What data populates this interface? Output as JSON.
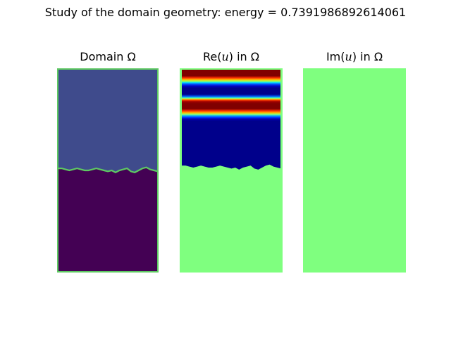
{
  "figure": {
    "suptitle": "Study of the domain geometry: energy = 0.7391986892614061"
  },
  "panels": [
    {
      "title_pre": "Domain Ω",
      "title_var": "",
      "title_post": ""
    },
    {
      "title_pre": "Re(",
      "title_var": "u",
      "title_post": ") in Ω"
    },
    {
      "title_pre": "Im(",
      "title_var": "u",
      "title_post": ") in Ω"
    }
  ],
  "colors": {
    "domain_upper": "#3f4b8c",
    "domain_lower": "#440154",
    "domain_border": "#5ec962",
    "jet_neutral": "#7fff7f",
    "jet_high": "#800000",
    "jet_low": "#00008b"
  },
  "chart_data": [
    {
      "type": "heatmap",
      "colormap": "viridis",
      "title": "Domain Ω",
      "interface_fraction_from_top": [
        0.49,
        0.49,
        0.495,
        0.5,
        0.495,
        0.49,
        0.495,
        0.5,
        0.5,
        0.495,
        0.49,
        0.495,
        0.5,
        0.505,
        0.5,
        0.51,
        0.5,
        0.495,
        0.49,
        0.505,
        0.51,
        0.5,
        0.49,
        0.485,
        0.495,
        0.5,
        0.505
      ]
    },
    {
      "type": "heatmap",
      "colormap": "jet",
      "title": "Re(u) in Ω",
      "bands": [
        {
          "label": "high",
          "from": 0.0,
          "to": 0.11
        },
        {
          "label": "low",
          "from": 0.14,
          "to": 0.27
        },
        {
          "label": "high",
          "from": 0.29,
          "to": 0.42
        },
        {
          "label": "low",
          "from": 0.45,
          "to": 0.5
        }
      ],
      "grid": false
    },
    {
      "type": "heatmap",
      "colormap": "jet",
      "title": "Im(u) in Ω",
      "uniform_value": 0
    }
  ]
}
